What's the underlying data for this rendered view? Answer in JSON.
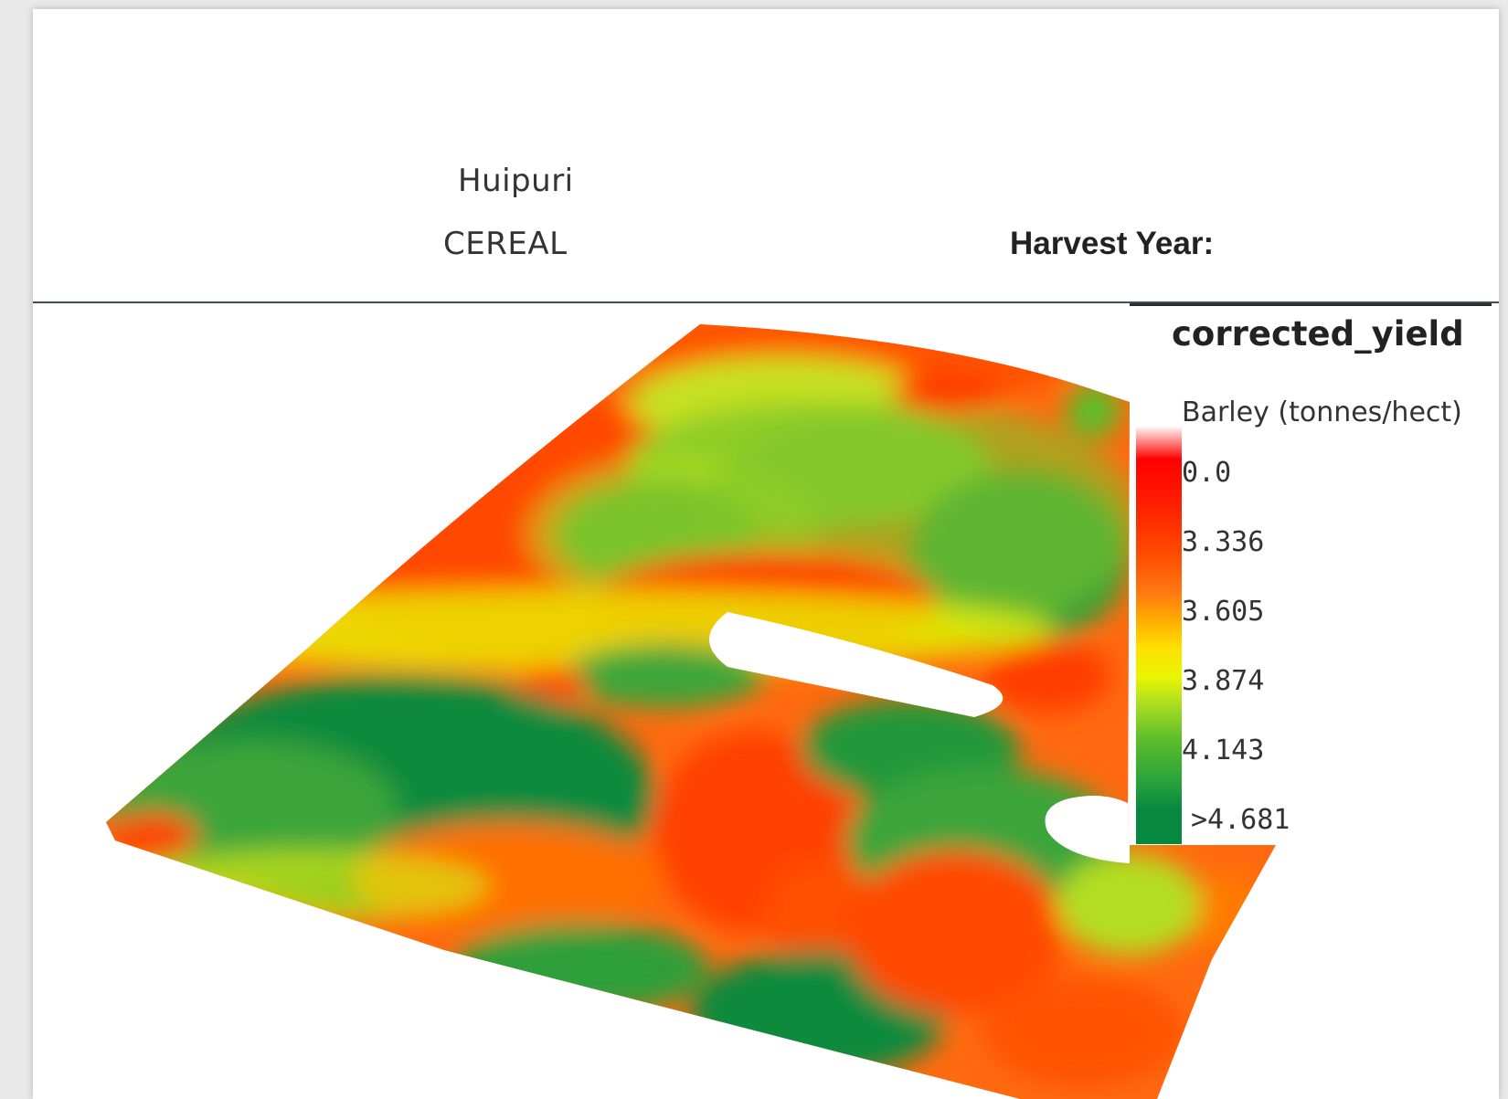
{
  "header": {
    "field_name": "Huipuri",
    "crop_type": "CEREAL",
    "harvest_year_label": "Harvest Year:"
  },
  "legend": {
    "title": "corrected_yield",
    "unit": "Barley (tonnes/hect)",
    "ticks": [
      "0.0",
      "3.336",
      "3.605",
      "3.874",
      "4.143",
      ">4.681"
    ]
  },
  "colors": {
    "low": "#ff0000",
    "mid_low": "#ff4800",
    "mid": "#ffe000",
    "mid_high": "#5cbd2a",
    "high": "#06883f"
  }
}
